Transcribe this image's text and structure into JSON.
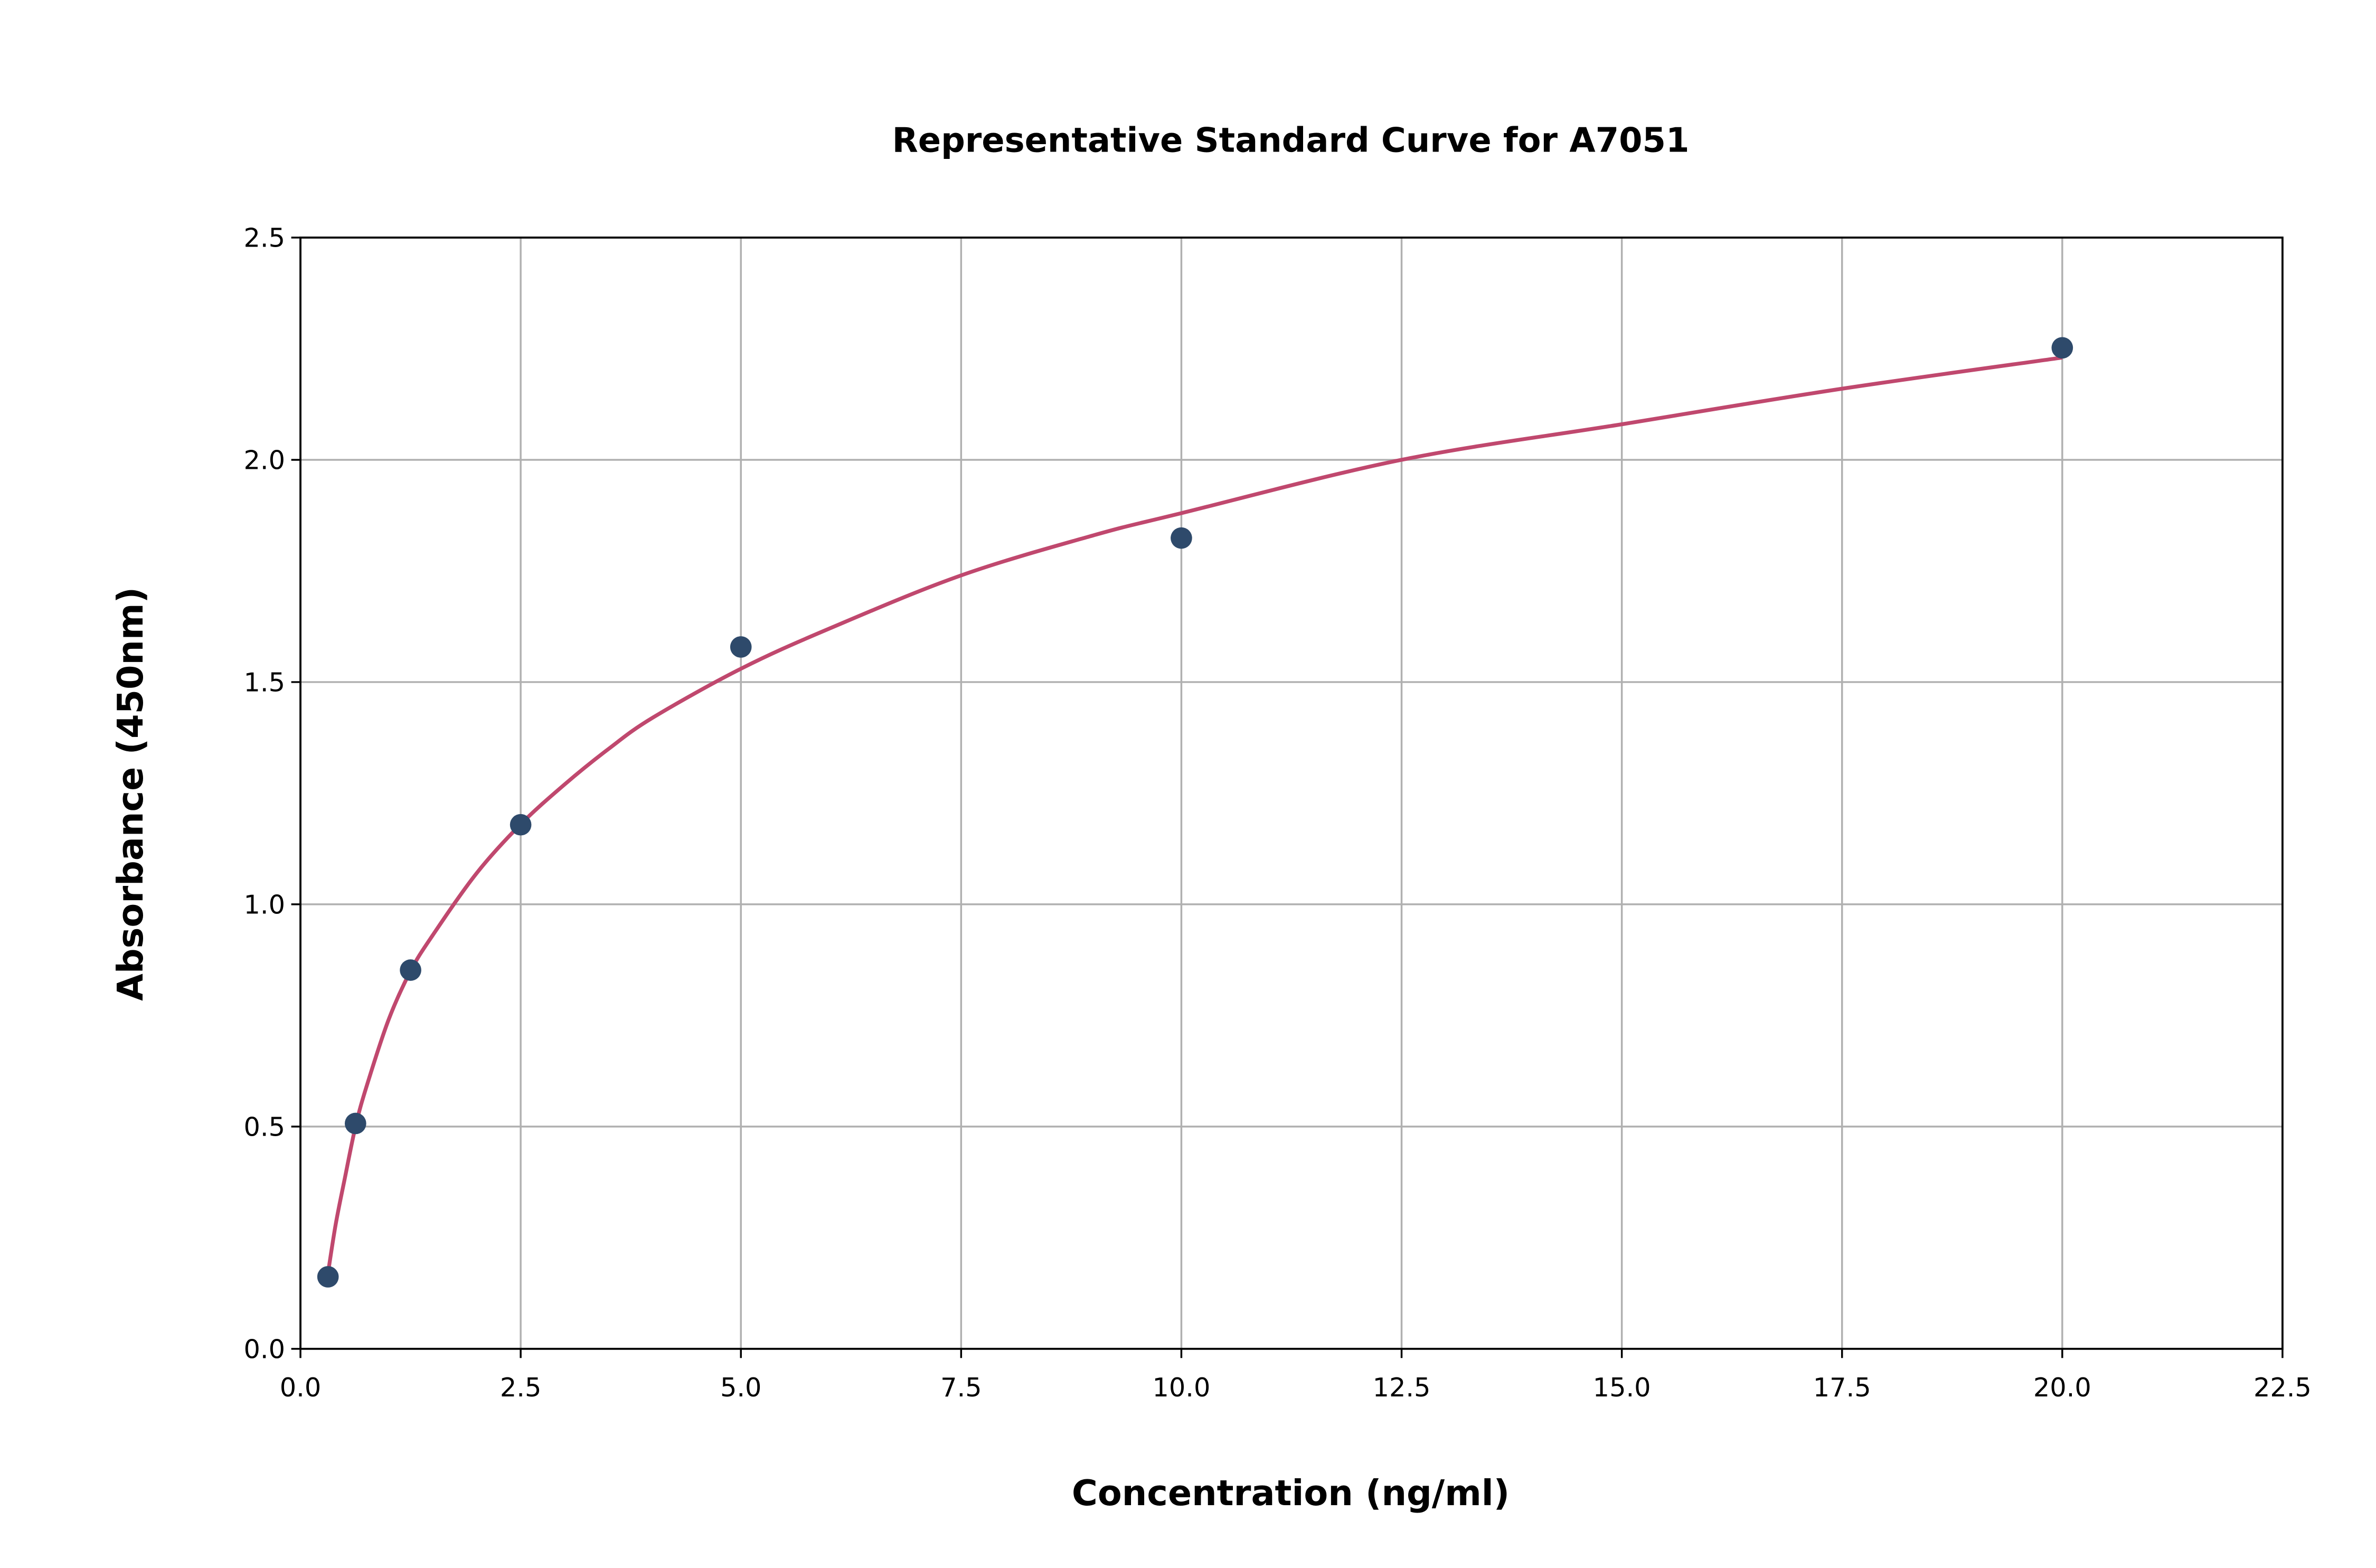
{
  "chart_data": {
    "type": "scatter",
    "title": "Representative Standard Curve for A7051",
    "xlabel": "Concentration (ng/ml)",
    "ylabel": "Absorbance (450nm)",
    "xlim": [
      0,
      22.5
    ],
    "ylim": [
      0,
      2.5
    ],
    "xticks": [
      "0.0",
      "2.5",
      "5.0",
      "7.5",
      "10.0",
      "12.5",
      "15.0",
      "17.5",
      "20.0",
      "22.5"
    ],
    "yticks": [
      "0.0",
      "0.5",
      "1.0",
      "1.5",
      "2.0",
      "2.5"
    ],
    "grid": true,
    "points": {
      "x": [
        0.3125,
        0.625,
        1.25,
        2.5,
        5,
        10,
        20
      ],
      "y": [
        0.162,
        0.507,
        0.852,
        1.179,
        1.579,
        1.824,
        2.252
      ],
      "color": "#2e4a6b"
    },
    "fit_curve": {
      "x": [
        0.3125,
        0.4,
        0.5,
        0.625,
        0.75,
        1,
        1.25,
        1.5,
        2,
        2.5,
        3,
        3.5,
        4,
        5,
        6,
        7.5,
        9,
        10,
        12.5,
        15,
        17.5,
        20
      ],
      "y": [
        0.17,
        0.28,
        0.38,
        0.5,
        0.59,
        0.74,
        0.85,
        0.93,
        1.07,
        1.18,
        1.27,
        1.35,
        1.42,
        1.53,
        1.62,
        1.74,
        1.83,
        1.88,
        2.0,
        2.08,
        2.16,
        2.23
      ],
      "color": "#c0486e"
    }
  }
}
